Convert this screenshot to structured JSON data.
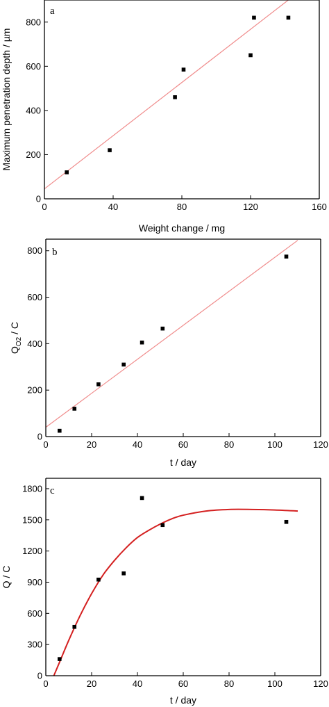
{
  "chart_data": [
    {
      "type": "scatter",
      "panel_label": "a",
      "title": "",
      "xlabel": "Weight change  /  mg",
      "ylabel": "Maximum penetration depth  /  µm",
      "xlim": [
        0,
        160
      ],
      "ylim": [
        0,
        900
      ],
      "xticks": [
        0,
        40,
        80,
        120,
        160
      ],
      "yticks": [
        0,
        200,
        400,
        600,
        800
      ],
      "grid": false,
      "series": [
        {
          "x": [
            13,
            38,
            76,
            81,
            120,
            122,
            142
          ],
          "y": [
            120,
            220,
            460,
            585,
            650,
            820,
            820
          ],
          "marker": "square",
          "color": "#000000"
        }
      ],
      "fit": {
        "kind": "linear",
        "color": "#f08c8c",
        "x": [
          0,
          142
        ],
        "y": [
          45,
          900
        ]
      }
    },
    {
      "type": "scatter",
      "panel_label": "b",
      "title": "",
      "xlabel": "t  /  day",
      "ylabel_main": "Q",
      "ylabel_sub": "O2",
      "ylabel_rest": "  /  C",
      "xlim": [
        0,
        120
      ],
      "ylim": [
        0,
        850
      ],
      "xticks": [
        0,
        20,
        40,
        60,
        80,
        100,
        120
      ],
      "yticks": [
        0,
        200,
        400,
        600,
        800
      ],
      "grid": false,
      "series": [
        {
          "x": [
            6,
            12.5,
            23,
            34,
            42,
            51,
            105
          ],
          "y": [
            25,
            120,
            225,
            310,
            405,
            465,
            775
          ],
          "marker": "square",
          "color": "#000000"
        }
      ],
      "fit": {
        "kind": "linear",
        "color": "#f08c8c",
        "x": [
          0,
          110
        ],
        "y": [
          40,
          845
        ]
      }
    },
    {
      "type": "scatter",
      "panel_label": "c",
      "title": "",
      "xlabel": "t  /  day",
      "ylabel": "Q  /  C",
      "xlim": [
        0,
        120
      ],
      "ylim": [
        0,
        1900
      ],
      "xticks": [
        0,
        20,
        40,
        60,
        80,
        100,
        120
      ],
      "yticks": [
        0,
        300,
        600,
        900,
        1200,
        1500,
        1800
      ],
      "grid": false,
      "series": [
        {
          "x": [
            6,
            12.5,
            23,
            34,
            42,
            51,
            105
          ],
          "y": [
            160,
            470,
            925,
            985,
            1710,
            1450,
            1480
          ],
          "marker": "square",
          "color": "#000000"
        }
      ],
      "fit": {
        "kind": "curve",
        "color": "#d42020",
        "x": [
          3.5,
          6,
          10,
          15,
          20,
          25,
          30,
          35,
          40,
          45,
          50,
          55,
          60,
          70,
          80,
          90,
          100,
          110
        ],
        "y": [
          0,
          130,
          340,
          580,
          790,
          970,
          1110,
          1230,
          1330,
          1400,
          1460,
          1510,
          1545,
          1585,
          1600,
          1600,
          1595,
          1585
        ]
      }
    }
  ]
}
